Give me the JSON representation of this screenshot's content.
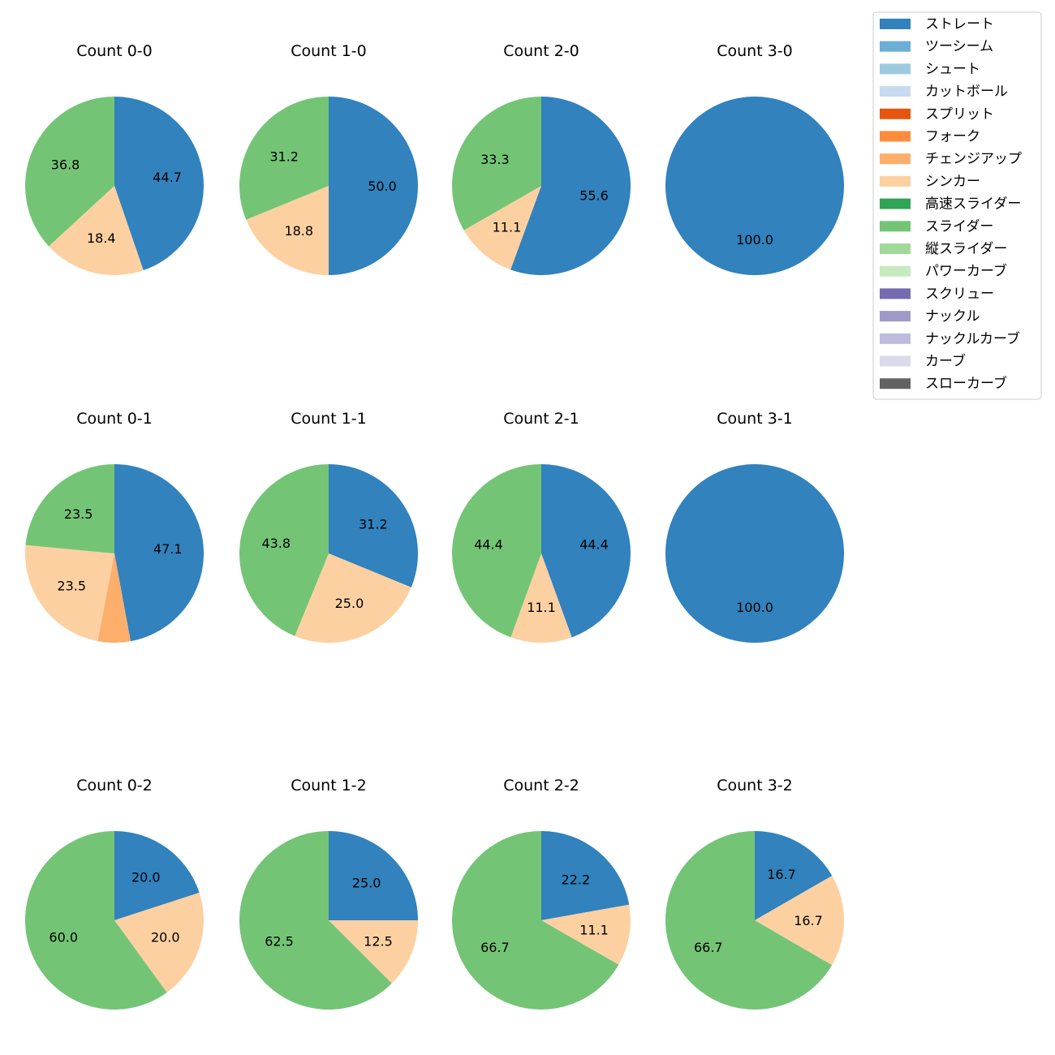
{
  "chart_data": {
    "type": "pie",
    "legend": {
      "placement": "top-right",
      "entries": [
        {
          "label": "ストレート",
          "color": "#3182bd"
        },
        {
          "label": "ツーシーム",
          "color": "#6baed6"
        },
        {
          "label": "シュート",
          "color": "#9ecae1"
        },
        {
          "label": "カットボール",
          "color": "#c6dbef"
        },
        {
          "label": "スプリット",
          "color": "#e6550d"
        },
        {
          "label": "フォーク",
          "color": "#fd8d3c"
        },
        {
          "label": "チェンジアップ",
          "color": "#fdae6b"
        },
        {
          "label": "シンカー",
          "color": "#fdd0a2"
        },
        {
          "label": "高速スライダー",
          "color": "#31a354"
        },
        {
          "label": "スライダー",
          "color": "#74c476"
        },
        {
          "label": "縦スライダー",
          "color": "#a1d99b"
        },
        {
          "label": "パワーカーブ",
          "color": "#c7e9c0"
        },
        {
          "label": "スクリュー",
          "color": "#756bb1"
        },
        {
          "label": "ナックル",
          "color": "#9e9ac8"
        },
        {
          "label": "ナックルカーブ",
          "color": "#bcbddc"
        },
        {
          "label": "カーブ",
          "color": "#dadaeb"
        },
        {
          "label": "スローカーブ",
          "color": "#636363"
        }
      ]
    },
    "charts": [
      {
        "title": "Count 0-0",
        "slices": [
          {
            "name": "ストレート",
            "value": 44.7,
            "label": "44.7"
          },
          {
            "name": "シンカー",
            "value": 18.4,
            "label": "18.4"
          },
          {
            "name": "スライダー",
            "value": 36.8,
            "label": "36.8"
          }
        ]
      },
      {
        "title": "Count 1-0",
        "slices": [
          {
            "name": "ストレート",
            "value": 50.0,
            "label": "50.0"
          },
          {
            "name": "シンカー",
            "value": 18.8,
            "label": "18.8"
          },
          {
            "name": "スライダー",
            "value": 31.2,
            "label": "31.2"
          }
        ]
      },
      {
        "title": "Count 2-0",
        "slices": [
          {
            "name": "ストレート",
            "value": 55.6,
            "label": "55.6"
          },
          {
            "name": "シンカー",
            "value": 11.1,
            "label": "11.1"
          },
          {
            "name": "スライダー",
            "value": 33.3,
            "label": "33.3"
          }
        ]
      },
      {
        "title": "Count 3-0",
        "slices": [
          {
            "name": "ストレート",
            "value": 100.0,
            "label": "100.0"
          }
        ]
      },
      {
        "title": "Count 0-1",
        "slices": [
          {
            "name": "ストレート",
            "value": 47.1,
            "label": "47.1"
          },
          {
            "name": "チェンジアップ",
            "value": 5.9,
            "label": ""
          },
          {
            "name": "シンカー",
            "value": 23.5,
            "label": "23.5"
          },
          {
            "name": "スライダー",
            "value": 23.5,
            "label": "23.5"
          }
        ]
      },
      {
        "title": "Count 1-1",
        "slices": [
          {
            "name": "ストレート",
            "value": 31.2,
            "label": "31.2"
          },
          {
            "name": "シンカー",
            "value": 25.0,
            "label": "25.0"
          },
          {
            "name": "スライダー",
            "value": 43.8,
            "label": "43.8"
          }
        ]
      },
      {
        "title": "Count 2-1",
        "slices": [
          {
            "name": "ストレート",
            "value": 44.4,
            "label": "44.4"
          },
          {
            "name": "シンカー",
            "value": 11.1,
            "label": "11.1"
          },
          {
            "name": "スライダー",
            "value": 44.4,
            "label": "44.4"
          }
        ]
      },
      {
        "title": "Count 3-1",
        "slices": [
          {
            "name": "ストレート",
            "value": 100.0,
            "label": "100.0"
          }
        ]
      },
      {
        "title": "Count 0-2",
        "slices": [
          {
            "name": "ストレート",
            "value": 20.0,
            "label": "20.0"
          },
          {
            "name": "シンカー",
            "value": 20.0,
            "label": "20.0"
          },
          {
            "name": "スライダー",
            "value": 60.0,
            "label": "60.0"
          }
        ]
      },
      {
        "title": "Count 1-2",
        "slices": [
          {
            "name": "ストレート",
            "value": 25.0,
            "label": "25.0"
          },
          {
            "name": "シンカー",
            "value": 12.5,
            "label": "12.5"
          },
          {
            "name": "スライダー",
            "value": 62.5,
            "label": "62.5"
          }
        ]
      },
      {
        "title": "Count 2-2",
        "slices": [
          {
            "name": "ストレート",
            "value": 22.2,
            "label": "22.2"
          },
          {
            "name": "シンカー",
            "value": 11.1,
            "label": "11.1"
          },
          {
            "name": "スライダー",
            "value": 66.7,
            "label": "66.7"
          }
        ]
      },
      {
        "title": "Count 3-2",
        "slices": [
          {
            "name": "ストレート",
            "value": 16.7,
            "label": "16.7"
          },
          {
            "name": "シンカー",
            "value": 16.7,
            "label": "16.7"
          },
          {
            "name": "スライダー",
            "value": 66.7,
            "label": "66.7"
          }
        ]
      }
    ]
  }
}
